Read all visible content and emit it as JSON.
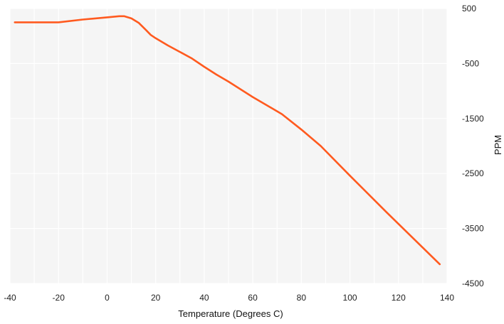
{
  "chart_data": {
    "type": "line",
    "title": "",
    "xlabel": "Temperature (Degrees C)",
    "ylabel": "PPM",
    "xlim": [
      -40,
      140
    ],
    "ylim": [
      -4500,
      500
    ],
    "xticks": [
      -40,
      -20,
      0,
      20,
      40,
      60,
      80,
      100,
      120,
      140
    ],
    "yticks": [
      500,
      -500,
      -1500,
      -2500,
      -3500,
      -4500
    ],
    "grid": true,
    "legend": "none",
    "y_axis_side": "right",
    "colors": {
      "line": "#ff5a1f",
      "plot_bg": "#f5f5f5",
      "grid": "#ffffff"
    },
    "series": [
      {
        "x": [
          -38,
          -30,
          -20,
          -10,
          0,
          5,
          7,
          10,
          13,
          16,
          18,
          20,
          25,
          30,
          35,
          40,
          45,
          50,
          60,
          72,
          80,
          88,
          100,
          115,
          137
        ],
        "y": [
          250,
          250,
          250,
          300,
          340,
          360,
          360,
          320,
          240,
          110,
          20,
          -40,
          -170,
          -290,
          -410,
          -560,
          -700,
          -830,
          -1110,
          -1420,
          -1700,
          -2000,
          -2540,
          -3200,
          -4150
        ]
      }
    ]
  }
}
